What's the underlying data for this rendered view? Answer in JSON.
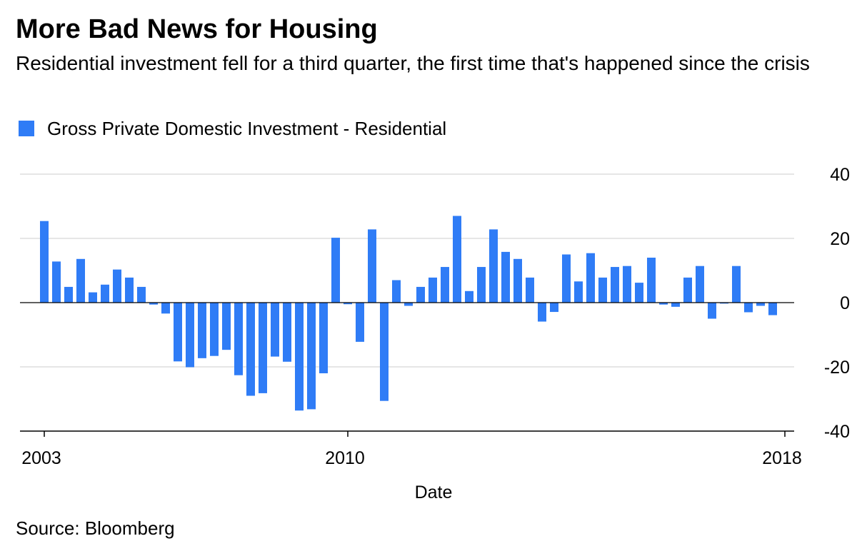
{
  "title": "More Bad News for Housing",
  "subtitle": "Residential investment fell for a third quarter, the first time that's happened since the crisis",
  "source": "Source: Bloomberg",
  "colors": {
    "bar": "#2F7CF6",
    "grid": "#e6e6e6",
    "axis": "#000000"
  },
  "chart_data": {
    "type": "bar",
    "xlabel": "Date",
    "ylabel": "",
    "ylim": [
      -40,
      40
    ],
    "yticks": [
      40,
      20,
      0,
      -20,
      -40
    ],
    "xticks": [
      {
        "label": "2003",
        "index": 0
      },
      {
        "label": "2010",
        "index": 25
      },
      {
        "label": "2018",
        "index": 61
      }
    ],
    "grid": true,
    "legend_position": "top-left",
    "series": [
      {
        "name": "Gross Private Domestic Investment - Residential",
        "values": [
          25.4,
          12.8,
          4.9,
          13.6,
          3.2,
          5.6,
          10.3,
          7.8,
          4.9,
          -0.6,
          -3.4,
          -18.3,
          -20.1,
          -17.3,
          -16.6,
          -14.7,
          -22.6,
          -29.0,
          -28.2,
          -16.8,
          -18.4,
          -33.6,
          -33.2,
          -22.0,
          20.2,
          -0.5,
          -12.2,
          22.8,
          -30.6,
          7.0,
          -1.0,
          4.9,
          7.8,
          11.1,
          27.0,
          3.6,
          11.1,
          22.8,
          15.8,
          13.6,
          7.8,
          -5.9,
          -2.9,
          15.0,
          6.6,
          15.4,
          7.8,
          11.1,
          11.4,
          6.2,
          14.0,
          -0.6,
          -1.3,
          7.8,
          11.4,
          -5.0,
          -0.3,
          11.4,
          -3.0,
          -1.0,
          -3.9
        ]
      }
    ]
  }
}
